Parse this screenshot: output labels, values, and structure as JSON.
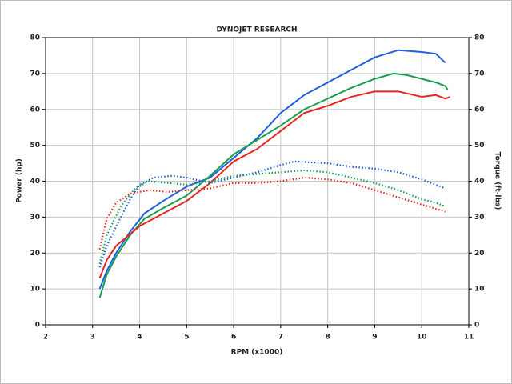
{
  "chart_data": {
    "type": "line",
    "title": "DYNOJET RESEARCH",
    "x_label": "RPM (x1000)",
    "y_label": "Power (hp)",
    "y2_label": "Torque (ft-lbs)",
    "xlim": [
      2,
      11
    ],
    "xticks": [
      2,
      3,
      4,
      5,
      6,
      7,
      8,
      9,
      10,
      11
    ],
    "ylim": [
      0,
      80
    ],
    "yticks": [
      0,
      10,
      20,
      30,
      40,
      50,
      60,
      70,
      80
    ],
    "y2lim": [
      0,
      80
    ],
    "y2ticks": [
      0,
      10,
      20,
      30,
      40,
      50,
      60,
      70,
      80
    ],
    "grid": true,
    "series": [
      {
        "color": "#1f5fe0",
        "style": "solid",
        "x": [
          3.15,
          3.3,
          3.5,
          3.8,
          4.1,
          4.5,
          5,
          5.5,
          6,
          6.5,
          7,
          7.3,
          7.5,
          8,
          8.5,
          9,
          9.5,
          10,
          10.3,
          10.5
        ],
        "values": [
          10,
          15,
          20,
          26,
          31,
          34.5,
          38.5,
          41,
          46.5,
          52,
          59,
          62,
          64,
          67.5,
          71,
          74.5,
          76.5,
          76,
          75.5,
          73
        ]
      },
      {
        "color": "#1aa050",
        "style": "solid",
        "x": [
          3.15,
          3.3,
          3.5,
          3.8,
          4.1,
          4.5,
          5,
          5.5,
          6,
          6.5,
          7,
          7.5,
          8,
          8.5,
          9,
          9.4,
          9.7,
          10,
          10.3,
          10.5,
          10.55
        ],
        "values": [
          7.5,
          14,
          19,
          25,
          29.5,
          32.5,
          36,
          41.5,
          47.5,
          51.5,
          55.5,
          60,
          63,
          66,
          68.5,
          70,
          69.5,
          68.5,
          67.5,
          66.5,
          65.5
        ]
      },
      {
        "color": "#e8281e",
        "style": "solid",
        "x": [
          3.15,
          3.3,
          3.5,
          4,
          4.5,
          5,
          5.5,
          6,
          6.5,
          7,
          7.5,
          8,
          8.5,
          9,
          9.5,
          10,
          10.3,
          10.5,
          10.6
        ],
        "values": [
          13,
          18,
          22,
          27.5,
          31,
          34.5,
          39.5,
          45.5,
          49,
          54,
          59,
          61,
          63.5,
          65,
          65,
          63.5,
          64,
          63,
          63.5
        ]
      },
      {
        "color": "#1f5fe0",
        "style": "dotted",
        "axis": "y2",
        "x": [
          3.15,
          3.3,
          3.6,
          3.8,
          4,
          4.3,
          4.7,
          5,
          5.5,
          6,
          6.5,
          7,
          7.3,
          8,
          8.5,
          9,
          9.5,
          10,
          10.5
        ],
        "values": [
          16,
          22,
          30,
          35,
          39,
          41,
          41.5,
          41,
          39.5,
          41,
          42.5,
          44.5,
          45.5,
          45,
          44,
          43.5,
          42.5,
          40.5,
          38
        ]
      },
      {
        "color": "#1aa050",
        "style": "dotted",
        "axis": "y2",
        "x": [
          3.15,
          3.3,
          3.6,
          3.9,
          4.2,
          4.6,
          5,
          5.5,
          6,
          6.5,
          7,
          7.5,
          8,
          8.5,
          9,
          9.5,
          10,
          10.3,
          10.5
        ],
        "values": [
          17,
          25,
          33,
          38,
          40,
          39.5,
          39,
          40,
          41.5,
          42,
          42.5,
          43,
          42.5,
          41,
          39.5,
          37.5,
          35,
          34,
          33
        ]
      },
      {
        "color": "#e8281e",
        "style": "dotted",
        "axis": "y2",
        "x": [
          3.15,
          3.3,
          3.5,
          3.8,
          4.2,
          4.6,
          5,
          5.5,
          6,
          6.5,
          7,
          7.5,
          8,
          8.5,
          9,
          9.5,
          10,
          10.5
        ],
        "values": [
          21,
          29.5,
          34,
          36.5,
          37.5,
          37,
          37.5,
          38,
          39.5,
          39.5,
          40,
          41,
          40.5,
          39.5,
          37.5,
          35.5,
          33.5,
          31.5
        ]
      }
    ]
  }
}
